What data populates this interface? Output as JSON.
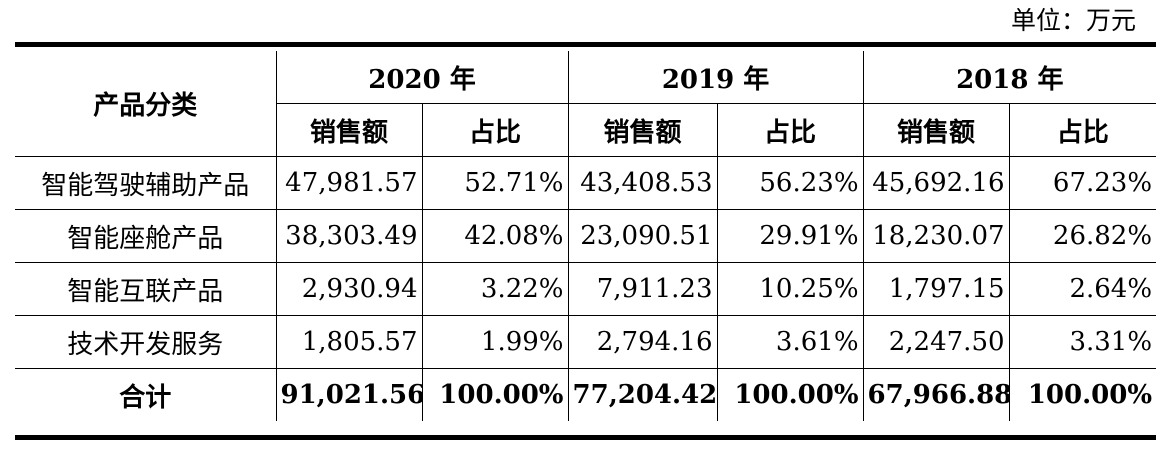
{
  "unit_label": "单位：万元",
  "table": {
    "corner_header": "产品分类",
    "years": [
      "2020 年",
      "2019 年",
      "2018 年"
    ],
    "sub_headers": [
      "销售额",
      "占比"
    ],
    "rows": [
      {
        "category": "智能驾驶辅助产品",
        "values": [
          "47,981.57",
          "52.71%",
          "43,408.53",
          "56.23%",
          "45,692.16",
          "67.23%"
        ]
      },
      {
        "category": "智能座舱产品",
        "values": [
          "38,303.49",
          "42.08%",
          "23,090.51",
          "29.91%",
          "18,230.07",
          "26.82%"
        ]
      },
      {
        "category": "智能互联产品",
        "values": [
          "2,930.94",
          "3.22%",
          "7,911.23",
          "10.25%",
          "1,797.15",
          "2.64%"
        ]
      },
      {
        "category": "技术开发服务",
        "values": [
          "1,805.57",
          "1.99%",
          "2,794.16",
          "3.61%",
          "2,247.50",
          "3.31%"
        ]
      }
    ],
    "total": {
      "category": "合计",
      "values": [
        "91,021.56",
        "100.00%",
        "77,204.42",
        "100.00%",
        "67,966.88",
        "100.00%"
      ]
    }
  }
}
